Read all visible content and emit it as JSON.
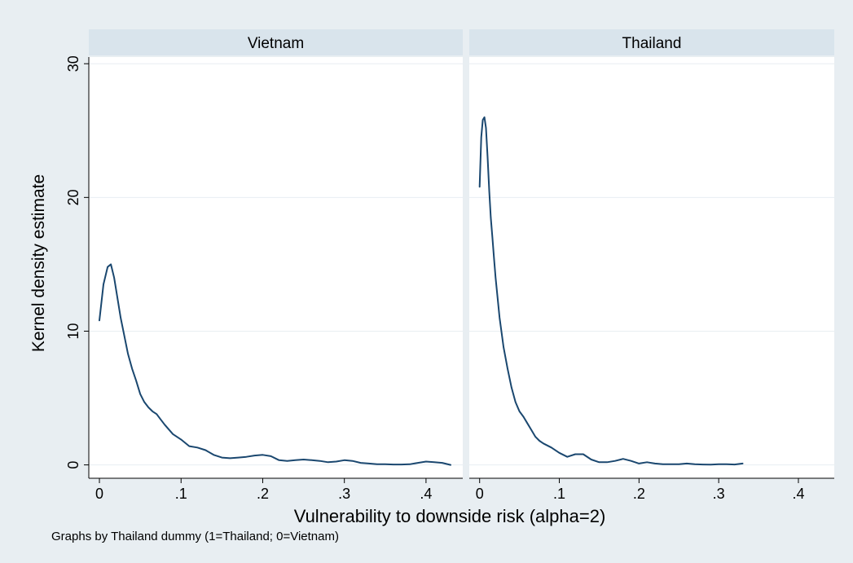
{
  "chart_data": {
    "type": "line",
    "layout": "small-multiples",
    "ylabel": "Kernel density estimate",
    "xlabel": "Vulnerability to downside risk (alpha=2)",
    "note": "Graphs by Thailand dummy (1=Thailand; 0=Vietnam)",
    "xlim": [
      -0.013,
      0.445
    ],
    "ylim": [
      -1,
      30.5
    ],
    "xticks": [
      0,
      0.1,
      0.2,
      0.3,
      0.4
    ],
    "xtick_labels": [
      "0",
      ".1",
      ".2",
      ".3",
      ".4"
    ],
    "yticks": [
      0,
      10,
      20,
      30
    ],
    "ytick_labels": [
      "0",
      "10",
      "20",
      "30"
    ],
    "grid": true,
    "colors": {
      "line": "#1a476f",
      "strip": "#d9e4ec",
      "outer": "#e8eef2",
      "panel": "#ffffff"
    },
    "panels": [
      {
        "title": "Vietnam",
        "x": [
          0,
          0.005,
          0.01,
          0.014,
          0.018,
          0.022,
          0.026,
          0.03,
          0.035,
          0.04,
          0.045,
          0.05,
          0.055,
          0.06,
          0.065,
          0.07,
          0.075,
          0.08,
          0.09,
          0.1,
          0.11,
          0.12,
          0.13,
          0.14,
          0.15,
          0.16,
          0.17,
          0.18,
          0.19,
          0.2,
          0.21,
          0.22,
          0.23,
          0.24,
          0.25,
          0.26,
          0.27,
          0.28,
          0.29,
          0.3,
          0.31,
          0.32,
          0.33,
          0.34,
          0.35,
          0.36,
          0.37,
          0.38,
          0.39,
          0.4,
          0.41,
          0.42,
          0.43
        ],
        "y": [
          10.8,
          13.5,
          14.8,
          15.0,
          14.0,
          12.5,
          11.0,
          9.8,
          8.3,
          7.2,
          6.3,
          5.3,
          4.7,
          4.3,
          4.0,
          3.8,
          3.4,
          3.0,
          2.3,
          1.9,
          1.4,
          1.3,
          1.1,
          0.75,
          0.55,
          0.5,
          0.55,
          0.6,
          0.7,
          0.75,
          0.65,
          0.35,
          0.3,
          0.35,
          0.4,
          0.35,
          0.3,
          0.2,
          0.25,
          0.35,
          0.3,
          0.15,
          0.1,
          0.05,
          0.05,
          0.03,
          0.03,
          0.05,
          0.15,
          0.25,
          0.2,
          0.15,
          0.0
        ]
      },
      {
        "title": "Thailand",
        "x": [
          0,
          0.002,
          0.004,
          0.006,
          0.008,
          0.01,
          0.012,
          0.014,
          0.016,
          0.018,
          0.02,
          0.025,
          0.03,
          0.035,
          0.04,
          0.045,
          0.05,
          0.055,
          0.06,
          0.065,
          0.07,
          0.075,
          0.08,
          0.09,
          0.1,
          0.11,
          0.12,
          0.13,
          0.14,
          0.15,
          0.16,
          0.17,
          0.18,
          0.19,
          0.2,
          0.21,
          0.22,
          0.23,
          0.24,
          0.25,
          0.26,
          0.27,
          0.28,
          0.29,
          0.3,
          0.31,
          0.32,
          0.33
        ],
        "y": [
          20.8,
          24.5,
          25.8,
          26.0,
          25.2,
          23.0,
          20.5,
          18.5,
          17.0,
          15.5,
          14.0,
          11.0,
          8.8,
          7.2,
          5.8,
          4.7,
          4.0,
          3.6,
          3.1,
          2.6,
          2.1,
          1.8,
          1.6,
          1.3,
          0.9,
          0.6,
          0.8,
          0.8,
          0.4,
          0.2,
          0.2,
          0.3,
          0.45,
          0.3,
          0.1,
          0.2,
          0.1,
          0.05,
          0.05,
          0.05,
          0.1,
          0.05,
          0.03,
          0.02,
          0.05,
          0.05,
          0.03,
          0.1
        ]
      }
    ]
  }
}
